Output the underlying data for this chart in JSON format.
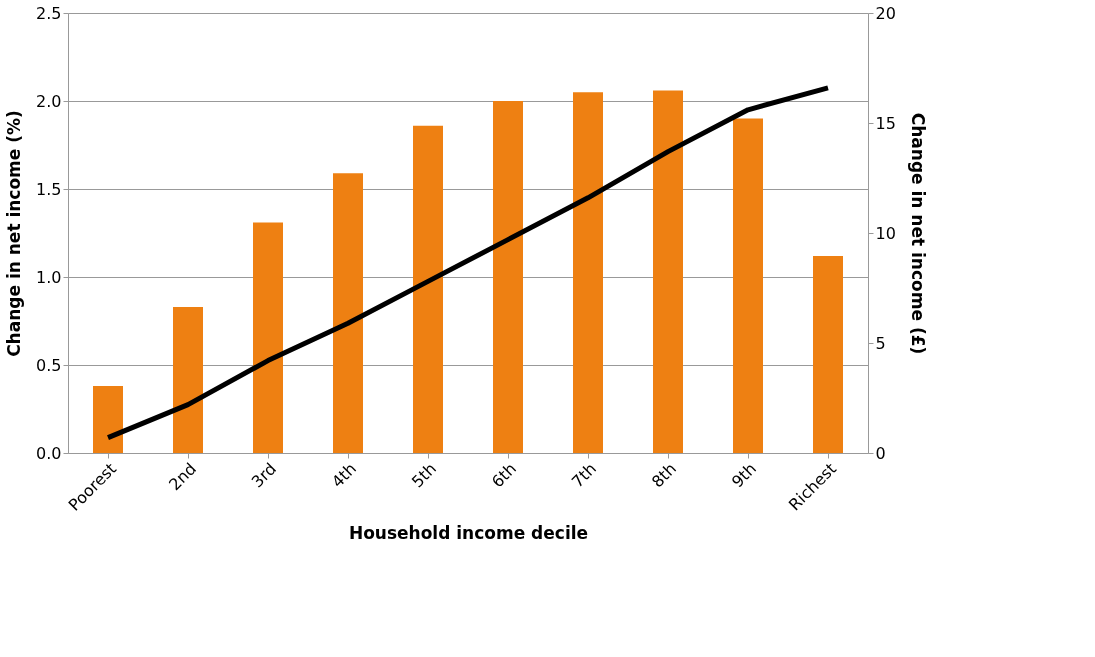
{
  "chart_data": {
    "type": "bar",
    "xlabel": "Household income decile",
    "ylabel": "Change in net income (%)",
    "y2label": "Change in net income (£)",
    "categories": [
      "Poorest",
      "2nd",
      "3rd",
      "4th",
      "5th",
      "6th",
      "7th",
      "8th",
      "9th",
      "Richest"
    ],
    "series": [
      {
        "color": "#ee8012",
        "values": [
          0.38,
          0.83,
          1.31,
          1.59,
          1.86,
          2.0,
          2.05,
          2.06,
          1.9,
          1.12
        ]
      },
      {
        "type": "line",
        "axis": "y2",
        "color": "#000000",
        "values": [
          0.7,
          2.2,
          4.2,
          5.9,
          7.8,
          9.7,
          11.6,
          13.7,
          15.6,
          16.6
        ]
      }
    ],
    "ylim": [
      0,
      2.5
    ],
    "yticks": [
      {
        "value": 0,
        "label": "0.0"
      },
      {
        "value": 0.5,
        "label": "0.5"
      },
      {
        "value": 1,
        "label": "1.0"
      },
      {
        "value": 1.5,
        "label": "1.5"
      },
      {
        "value": 2,
        "label": "2.0"
      },
      {
        "value": 2.5,
        "label": "2.5"
      }
    ],
    "y2lim": [
      0,
      20
    ],
    "y2ticks": [
      0,
      5,
      10,
      15,
      20
    ],
    "grid": "y",
    "marker": "none",
    "line_style": "solid"
  }
}
